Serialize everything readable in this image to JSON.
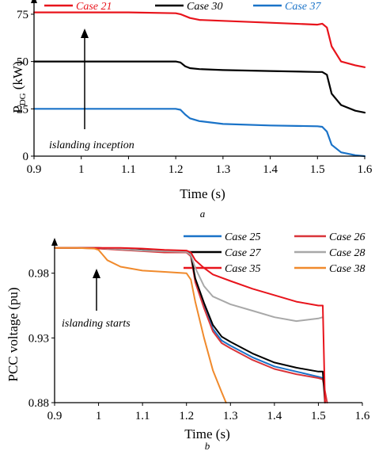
{
  "charts": [
    {
      "type": "line",
      "ylabel_main": "P",
      "ylabel_sub": "DG",
      "ylabel_unit": " (kW)",
      "xlabel": "Time (s)",
      "caption": "a",
      "annotation": "islanding inception",
      "xlim": [
        0.9,
        1.6
      ],
      "ylim": [
        0,
        80
      ],
      "xticks": [
        "0.9",
        "1",
        "1.1",
        "1.2",
        "1.3",
        "1.4",
        "1.5",
        "1.6"
      ],
      "yticks": [
        "0",
        "25",
        "50",
        "75"
      ]
    },
    {
      "type": "line",
      "ylabel_main": "PCC voltage (pu)",
      "xlabel": "Time (s)",
      "caption": "b",
      "annotation": "islanding starts",
      "xlim": [
        0.9,
        1.6
      ],
      "ylim": [
        0.88,
        1.0
      ],
      "xticks": [
        "0.9",
        "1",
        "1.1",
        "1.2",
        "1.3",
        "1.4",
        "1.5",
        "1.6"
      ],
      "yticks": [
        "0.88",
        "0.93",
        "0.98"
      ]
    }
  ],
  "chart_data": [
    {
      "type": "line",
      "xlabel": "Time (s)",
      "ylabel": "PDG (kW)",
      "xlim": [
        0.9,
        1.6
      ],
      "ylim": [
        0,
        80
      ],
      "legend": "top",
      "series": [
        {
          "name": "Case 21",
          "color": "#e8141c",
          "x": [
            0.9,
            1.0,
            1.1,
            1.2,
            1.21,
            1.23,
            1.25,
            1.3,
            1.4,
            1.5,
            1.51,
            1.52,
            1.53,
            1.55,
            1.58,
            1.6
          ],
          "y": [
            76,
            76,
            76,
            75.5,
            75,
            73,
            72,
            71.5,
            70.5,
            69.5,
            70,
            68,
            58,
            50,
            48,
            47
          ]
        },
        {
          "name": "Case 30",
          "color": "#000000",
          "x": [
            0.9,
            1.0,
            1.1,
            1.2,
            1.21,
            1.22,
            1.23,
            1.25,
            1.3,
            1.4,
            1.5,
            1.51,
            1.52,
            1.53,
            1.55,
            1.58,
            1.6
          ],
          "y": [
            50,
            50,
            50,
            50,
            49.5,
            47.5,
            46.5,
            46,
            45.5,
            45,
            44.5,
            44.5,
            43,
            33,
            27,
            24,
            23
          ]
        },
        {
          "name": "Case 37",
          "color": "#1a73c8",
          "x": [
            0.9,
            1.0,
            1.1,
            1.2,
            1.21,
            1.22,
            1.23,
            1.25,
            1.3,
            1.4,
            1.5,
            1.51,
            1.52,
            1.53,
            1.55,
            1.58,
            1.6
          ],
          "y": [
            25,
            25,
            25,
            25,
            24.5,
            22,
            20,
            18.5,
            17,
            16.2,
            15.8,
            15.5,
            13,
            6,
            2,
            0.5,
            0
          ]
        }
      ]
    },
    {
      "type": "line",
      "xlabel": "Time (s)",
      "ylabel": "PCC voltage (pu)",
      "xlim": [
        0.9,
        1.6
      ],
      "ylim": [
        0.88,
        1.0
      ],
      "legend": "top-right",
      "series": [
        {
          "name": "Case 25",
          "color": "#1a73c8",
          "x": [
            0.9,
            0.95,
            1.0,
            1.05,
            1.1,
            1.15,
            1.2,
            1.21,
            1.22,
            1.24,
            1.26,
            1.28,
            1.3,
            1.35,
            1.4,
            1.45,
            1.5,
            1.51
          ],
          "y": [
            0.9995,
            0.9995,
            0.9995,
            0.9985,
            0.9975,
            0.997,
            0.9965,
            0.994,
            0.975,
            0.955,
            0.937,
            0.928,
            0.924,
            0.915,
            0.908,
            0.904,
            0.9,
            0.899
          ]
        },
        {
          "name": "Case 26",
          "color": "#d9353a",
          "x": [
            0.9,
            0.95,
            1.0,
            1.05,
            1.1,
            1.15,
            1.2,
            1.21,
            1.22,
            1.24,
            1.26,
            1.28,
            1.3,
            1.35,
            1.4,
            1.45,
            1.5,
            1.51,
            1.52
          ],
          "y": [
            0.9995,
            0.9995,
            0.999,
            0.998,
            0.997,
            0.996,
            0.996,
            0.993,
            0.973,
            0.953,
            0.935,
            0.926,
            0.922,
            0.913,
            0.906,
            0.902,
            0.899,
            0.898,
            0.88
          ]
        },
        {
          "name": "Case 27",
          "color": "#000000",
          "x": [
            0.9,
            0.95,
            1.0,
            1.05,
            1.1,
            1.15,
            1.2,
            1.21,
            1.22,
            1.24,
            1.26,
            1.28,
            1.3,
            1.35,
            1.4,
            1.45,
            1.5,
            1.51,
            1.515
          ],
          "y": [
            0.9995,
            0.9995,
            0.9995,
            0.9985,
            0.9978,
            0.9972,
            0.9968,
            0.994,
            0.976,
            0.957,
            0.94,
            0.931,
            0.927,
            0.918,
            0.911,
            0.907,
            0.904,
            0.904,
            0.88
          ]
        },
        {
          "name": "Case 28",
          "color": "#a8a8a8",
          "x": [
            0.9,
            0.95,
            1.0,
            1.05,
            1.1,
            1.15,
            1.2,
            1.21,
            1.22,
            1.24,
            1.26,
            1.3,
            1.35,
            1.4,
            1.45,
            1.5,
            1.51
          ],
          "y": [
            0.9995,
            0.9995,
            0.9995,
            0.9985,
            0.9975,
            0.997,
            0.9965,
            0.994,
            0.984,
            0.97,
            0.962,
            0.956,
            0.951,
            0.946,
            0.943,
            0.945,
            0.946
          ]
        },
        {
          "name": "Case 35",
          "color": "#e8141c",
          "x": [
            0.9,
            0.95,
            1.0,
            1.05,
            1.1,
            1.15,
            1.2,
            1.21,
            1.22,
            1.24,
            1.26,
            1.3,
            1.35,
            1.4,
            1.45,
            1.5,
            1.51,
            1.515
          ],
          "y": [
            0.9995,
            0.9995,
            0.9995,
            0.9995,
            0.999,
            0.998,
            0.9975,
            0.996,
            0.99,
            0.984,
            0.979,
            0.974,
            0.968,
            0.963,
            0.958,
            0.955,
            0.955,
            0.88
          ]
        },
        {
          "name": "Case 38",
          "color": "#f08a2c",
          "x": [
            0.9,
            0.95,
            0.99,
            1.0,
            1.02,
            1.05,
            1.1,
            1.15,
            1.2,
            1.21,
            1.22,
            1.24,
            1.26,
            1.28,
            1.29
          ],
          "y": [
            0.9995,
            0.9995,
            0.999,
            0.998,
            0.99,
            0.985,
            0.982,
            0.981,
            0.98,
            0.975,
            0.958,
            0.93,
            0.905,
            0.888,
            0.88
          ]
        }
      ]
    }
  ]
}
